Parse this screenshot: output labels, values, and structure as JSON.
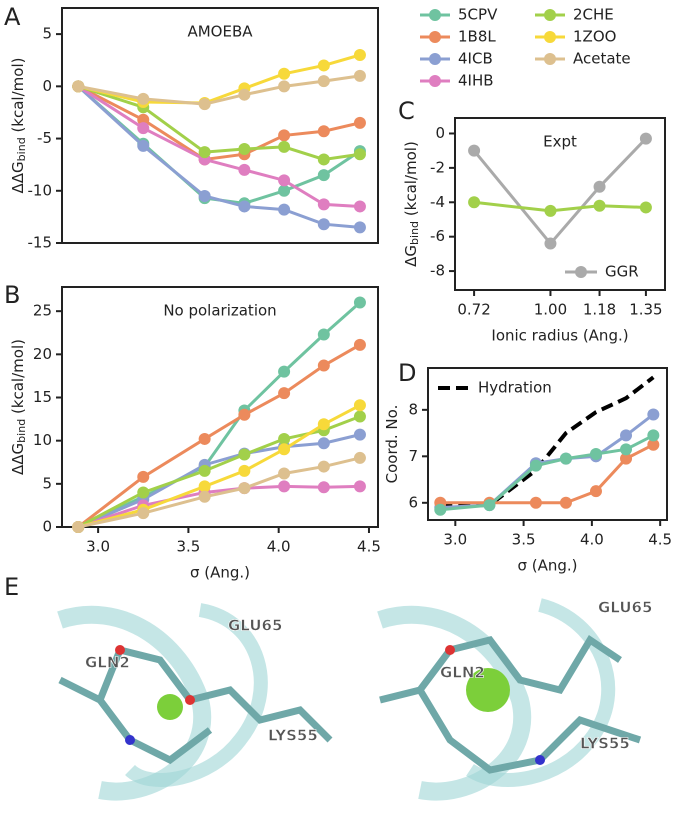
{
  "panel_labels": [
    "A",
    "B",
    "C",
    "D",
    "E"
  ],
  "chart_data": [
    {
      "type": "line",
      "annotation": "AMOEBA",
      "ylabel": {
        "text": "ΔΔG",
        "sub": "bind",
        "unit": " (kcal/mol)"
      },
      "x": [
        2.89,
        3.25,
        3.59,
        3.81,
        4.03,
        4.25,
        4.45
      ],
      "xlim": [
        2.8,
        4.55
      ],
      "ylim": [
        -15,
        7.5
      ],
      "yticks": [
        5,
        0,
        -5,
        -10,
        -15
      ],
      "legend": "outside",
      "series": [
        {
          "name": "5CPV",
          "color": "#6fc3a0",
          "values": [
            0,
            -5.5,
            -10.7,
            -11.2,
            -10,
            -8.5,
            -6.2
          ]
        },
        {
          "name": "1B8L",
          "color": "#ec8a5c",
          "values": [
            0,
            -3.2,
            -7,
            -6.5,
            -4.7,
            -4.3,
            -3.5
          ]
        },
        {
          "name": "4ICB",
          "color": "#8b9fd2",
          "values": [
            0,
            -5.7,
            -10.5,
            -11.5,
            -11.8,
            -13.2,
            -13.5
          ]
        },
        {
          "name": "4IHB",
          "color": "#df7ec0",
          "values": [
            0,
            -4,
            -7,
            -8,
            -9,
            -11.3,
            -11.5
          ]
        },
        {
          "name": "2CHE",
          "color": "#a2d04a",
          "values": [
            0,
            -2,
            -6.3,
            -6,
            -5.8,
            -7,
            -6.5
          ]
        },
        {
          "name": "1ZOO",
          "color": "#f7d93a",
          "values": [
            0,
            -1.5,
            -1.6,
            -0.2,
            1.2,
            2,
            3
          ]
        },
        {
          "name": "Acetate",
          "color": "#ddc08f",
          "values": [
            0,
            -1.2,
            -1.7,
            -0.8,
            0,
            0.5,
            1
          ]
        }
      ]
    },
    {
      "type": "line",
      "annotation": "No polarization",
      "ylabel": {
        "text": "ΔΔG",
        "sub": "bind",
        "unit": " (kcal/mol)"
      },
      "xlabel": "σ (Ang.)",
      "x": [
        2.89,
        3.25,
        3.59,
        3.81,
        4.03,
        4.25,
        4.45
      ],
      "xlim": [
        2.8,
        4.55
      ],
      "xticks": [
        {
          "value": 3,
          "label": "3.0"
        },
        3.5,
        {
          "value": 4,
          "label": "4.0"
        },
        4.5
      ],
      "ylim": [
        0,
        27.8
      ],
      "yticks": [
        0,
        5,
        10,
        15,
        20,
        25
      ],
      "series": [
        {
          "color": "#6fc3a0",
          "values": [
            0,
            3.5,
            7,
            13.5,
            18,
            22.3,
            26
          ]
        },
        {
          "color": "#ec8a5c",
          "values": [
            0,
            5.8,
            10.2,
            13,
            15.5,
            18.7,
            21.1
          ]
        },
        {
          "color": "#8b9fd2",
          "values": [
            0,
            3.2,
            7.2,
            8.5,
            9.3,
            9.7,
            10.7
          ]
        },
        {
          "color": "#df7ec0",
          "values": [
            0,
            2.5,
            4,
            4.5,
            4.7,
            4.6,
            4.7
          ]
        },
        {
          "color": "#a2d04a",
          "values": [
            0,
            4,
            6.5,
            8.4,
            10.2,
            11.2,
            12.8
          ]
        },
        {
          "color": "#f7d93a",
          "values": [
            0,
            2,
            4.7,
            6.5,
            9,
            11.9,
            14.1
          ]
        },
        {
          "color": "#ddc08f",
          "values": [
            0,
            1.6,
            3.5,
            4.5,
            6.2,
            7,
            8
          ]
        }
      ]
    },
    {
      "type": "line",
      "annotation": "Expt",
      "ylabel": {
        "text": "ΔG",
        "sub": "bind",
        "unit": " (kcal/mol)"
      },
      "xlabel": "Ionic radius (Ang.)",
      "x": [
        0.72,
        1.0,
        1.18,
        1.35
      ],
      "xlim": [
        0.65,
        1.42
      ],
      "xticks": [
        0.72,
        {
          "value": 1,
          "label": "1.00"
        },
        1.18,
        1.35
      ],
      "ylim": [
        -9.1,
        0.9
      ],
      "yticks": [
        0,
        -2,
        -4,
        -6,
        -8
      ],
      "legend": "lower right",
      "series": [
        {
          "name": "GGR",
          "color": "#aaaaaa",
          "values": [
            -1,
            -6.4,
            -3.1,
            -0.3
          ]
        },
        {
          "color": "#a2d04a",
          "values": [
            -4,
            -4.5,
            -4.2,
            -4.3
          ]
        }
      ]
    },
    {
      "type": "line",
      "ylabel": {
        "text": "Coord. No."
      },
      "xlabel": "σ (Ang.)",
      "x": [
        2.89,
        3.25,
        3.59,
        3.81,
        4.03,
        4.25,
        4.45
      ],
      "xlim": [
        2.8,
        4.55
      ],
      "xticks": [
        {
          "value": 3,
          "label": "3.0"
        },
        3.5,
        {
          "value": 4,
          "label": "4.0"
        },
        4.5
      ],
      "ylim": [
        5.63,
        8.9
      ],
      "yticks": [
        6,
        7,
        8
      ],
      "legend": "upper left",
      "series": [
        {
          "name": "Hydration",
          "color": "#000000",
          "dashed": true,
          "values": [
            5.95,
            5.95,
            6.7,
            7.5,
            7.95,
            8.25,
            8.7
          ]
        },
        {
          "color": "#8b9fd2",
          "values": [
            5.9,
            5.95,
            6.85,
            6.95,
            7.0,
            7.45,
            7.9
          ]
        },
        {
          "color": "#ec8a5c",
          "values": [
            6.0,
            6.0,
            6.0,
            6.0,
            6.25,
            6.95,
            7.25
          ]
        },
        {
          "color": "#6fc3a0",
          "values": [
            5.85,
            5.95,
            6.8,
            6.95,
            7.05,
            7.15,
            7.45
          ]
        }
      ]
    }
  ],
  "molecule_panels": [
    {
      "labels": [
        "GLN2",
        "GLU65",
        "LYS55"
      ]
    },
    {
      "labels": [
        "GLN2",
        "GLU65",
        "LYS55"
      ]
    }
  ]
}
